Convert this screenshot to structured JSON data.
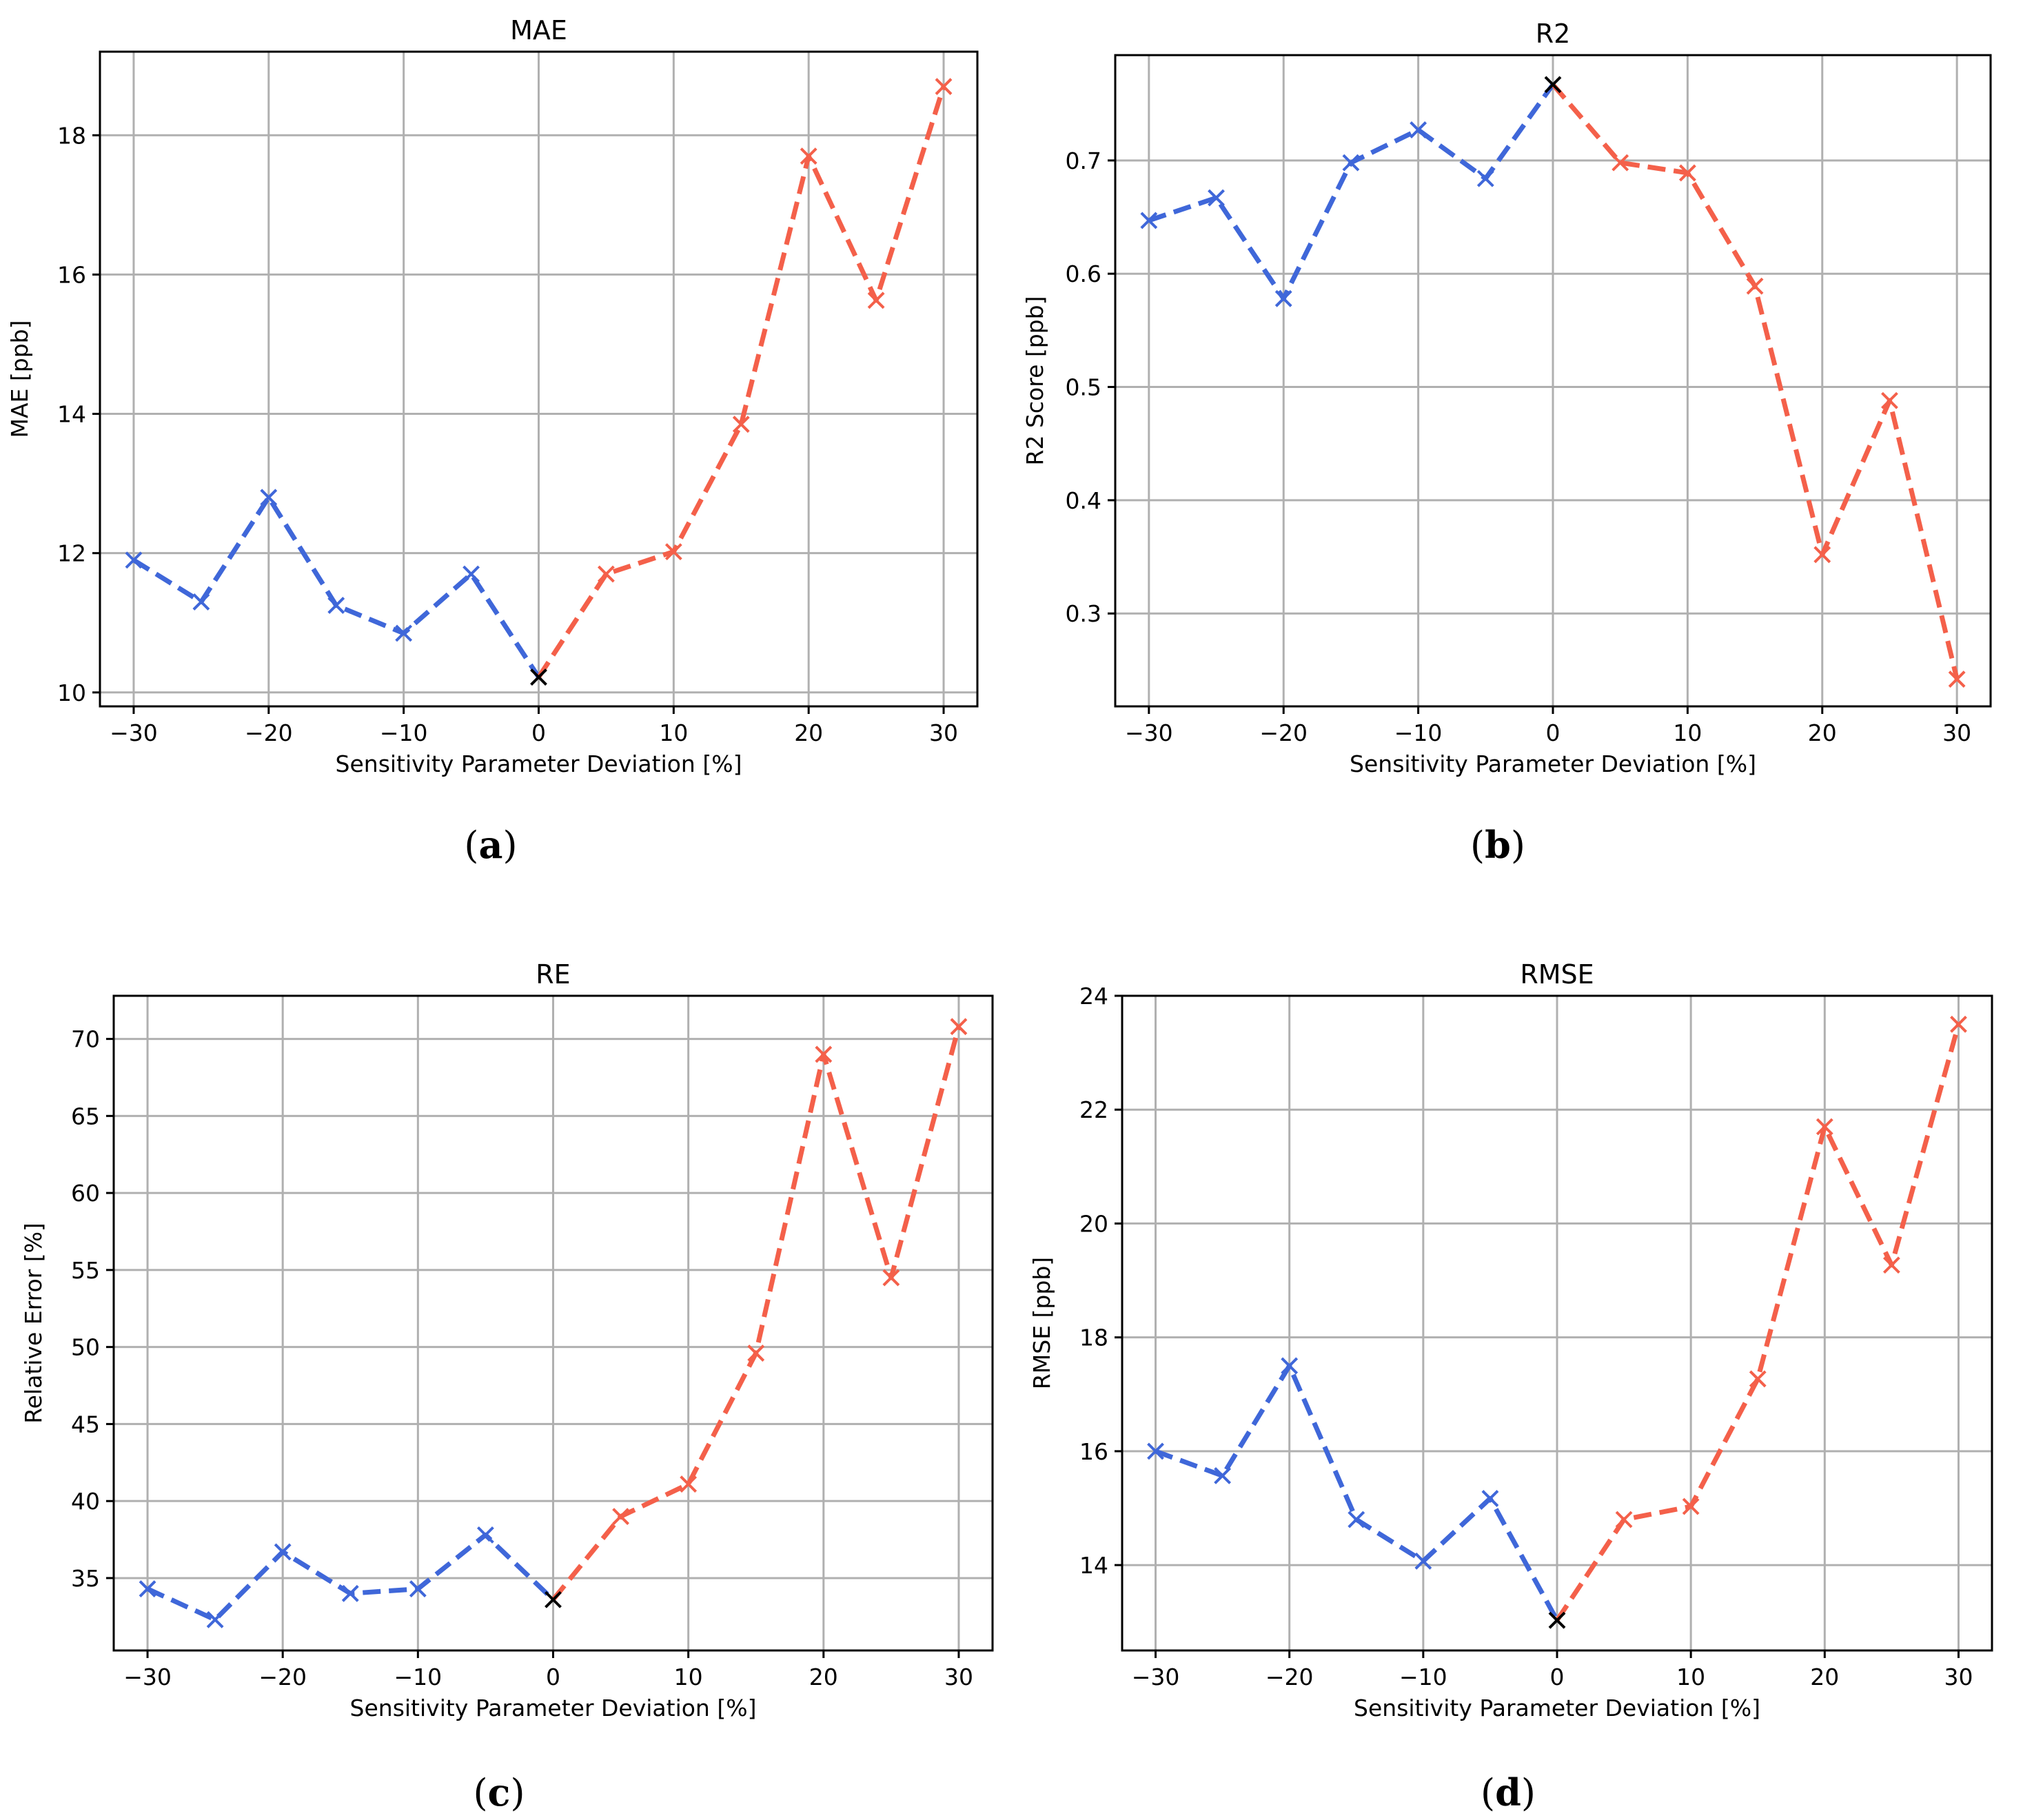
{
  "colors": {
    "negative": "#3f67d9",
    "positive": "#f4604a",
    "baseline": "#000000",
    "grid": "#b0b0b0"
  },
  "chart_data": [
    {
      "id": "a",
      "type": "line",
      "title": "MAE",
      "xlabel": "Sensitivity Parameter Deviation [%]",
      "ylabel": "MAE [ppb]",
      "caption_letter": "a",
      "xlim": [
        -32.5,
        32.5
      ],
      "ylim": [
        9.8,
        19.2
      ],
      "xticks": [
        -30,
        -20,
        -10,
        0,
        10,
        20,
        30
      ],
      "xtick_labels": [
        "−30",
        "−20",
        "−10",
        "0",
        "10",
        "20",
        "30"
      ],
      "yticks": [
        10,
        12,
        14,
        16,
        18
      ],
      "ytick_labels": [
        "10",
        "12",
        "14",
        "16",
        "18"
      ],
      "x": [
        -30,
        -25,
        -20,
        -15,
        -10,
        -5,
        0,
        5,
        10,
        15,
        20,
        25,
        30
      ],
      "y": [
        11.9,
        11.3,
        12.8,
        11.25,
        10.85,
        11.7,
        10.22,
        11.7,
        12.02,
        13.85,
        17.7,
        15.63,
        18.7
      ]
    },
    {
      "id": "b",
      "type": "line",
      "title": "R2",
      "xlabel": "Sensitivity Parameter Deviation [%]",
      "ylabel": "R2 Score [ppb]",
      "caption_letter": "b",
      "xlim": [
        -32.5,
        32.5
      ],
      "ylim": [
        0.218,
        0.793
      ],
      "xticks": [
        -30,
        -20,
        -10,
        0,
        10,
        20,
        30
      ],
      "xtick_labels": [
        "−30",
        "−20",
        "−10",
        "0",
        "10",
        "20",
        "30"
      ],
      "yticks": [
        0.3,
        0.4,
        0.5,
        0.6,
        0.7
      ],
      "ytick_labels": [
        "0.3",
        "0.4",
        "0.5",
        "0.6",
        "0.7"
      ],
      "x": [
        -30,
        -25,
        -20,
        -15,
        -10,
        -5,
        0,
        5,
        10,
        15,
        20,
        25,
        30
      ],
      "y": [
        0.647,
        0.667,
        0.578,
        0.698,
        0.727,
        0.684,
        0.767,
        0.698,
        0.689,
        0.589,
        0.352,
        0.488,
        0.242
      ]
    },
    {
      "id": "c",
      "type": "line",
      "title": "RE",
      "xlabel": "Sensitivity Parameter Deviation [%]",
      "ylabel": "Relative Error [%]",
      "caption_letter": "c",
      "xlim": [
        -32.5,
        32.5
      ],
      "ylim": [
        30.3,
        72.8
      ],
      "xticks": [
        -30,
        -20,
        -10,
        0,
        10,
        20,
        30
      ],
      "xtick_labels": [
        "−30",
        "−20",
        "−10",
        "0",
        "10",
        "20",
        "30"
      ],
      "yticks": [
        35,
        40,
        45,
        50,
        55,
        60,
        65,
        70
      ],
      "ytick_labels": [
        "35",
        "40",
        "45",
        "50",
        "55",
        "60",
        "65",
        "70"
      ],
      "x": [
        -30,
        -25,
        -20,
        -15,
        -10,
        -5,
        0,
        5,
        10,
        15,
        20,
        25,
        30
      ],
      "y": [
        34.3,
        32.3,
        36.7,
        34.0,
        34.3,
        37.8,
        33.6,
        39.0,
        41.1,
        49.6,
        69.0,
        54.5,
        70.8
      ]
    },
    {
      "id": "d",
      "type": "line",
      "title": "RMSE",
      "xlabel": "Sensitivity Parameter Deviation [%]",
      "ylabel": "RMSE [ppb]",
      "caption_letter": "d",
      "xlim": [
        -32.5,
        32.5
      ],
      "ylim": [
        12.5,
        24.0
      ],
      "xticks": [
        -30,
        -20,
        -10,
        0,
        10,
        20,
        30
      ],
      "xtick_labels": [
        "−30",
        "−20",
        "−10",
        "0",
        "10",
        "20",
        "30"
      ],
      "yticks": [
        14,
        16,
        18,
        20,
        22,
        24
      ],
      "ytick_labels": [
        "14",
        "16",
        "18",
        "20",
        "22",
        "24"
      ],
      "x": [
        -30,
        -25,
        -20,
        -15,
        -10,
        -5,
        0,
        5,
        10,
        15,
        20,
        25,
        30
      ],
      "y": [
        16.0,
        15.57,
        17.5,
        14.8,
        14.07,
        15.17,
        13.03,
        14.8,
        15.03,
        17.27,
        21.7,
        19.27,
        23.5
      ]
    }
  ]
}
